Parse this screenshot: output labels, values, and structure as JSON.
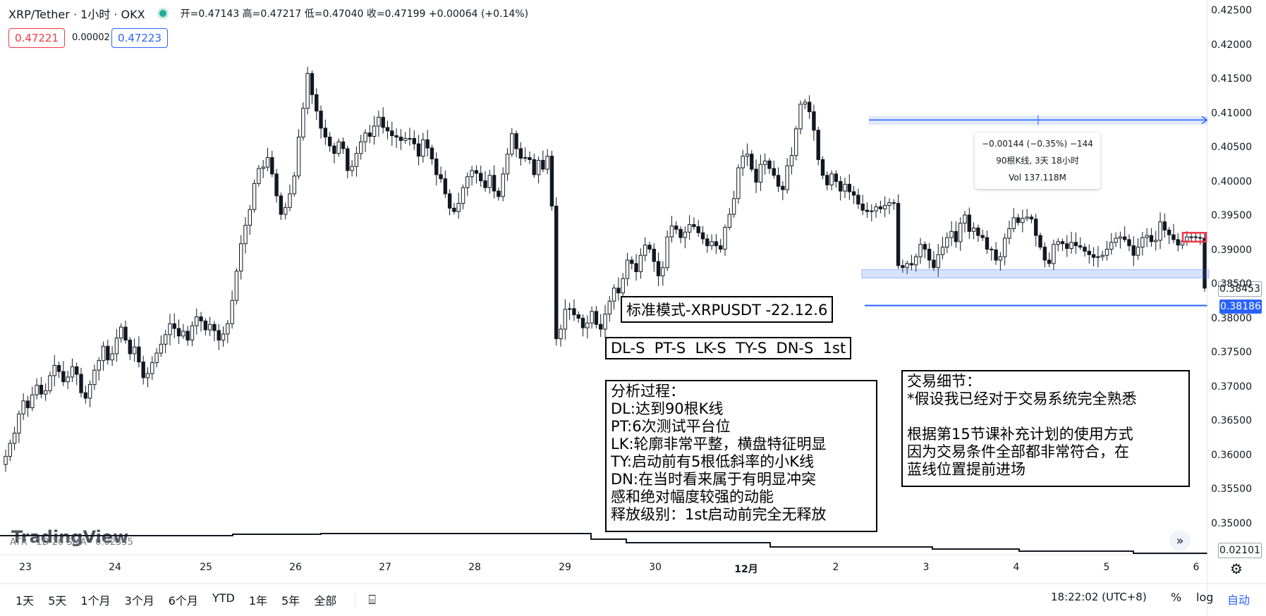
{
  "header": {
    "symbol": "XRP/Tether · 1小时 · OKX",
    "ohlc": "开=0.47143 高=0.47217 低=0.47040 收=0.47199 +0.00064 (+0.14%)",
    "bid": "0.47221",
    "spread": "0.00002",
    "ask": "0.47223"
  },
  "annotations": {
    "title": "标准模式-XRPUSDT -22.12.6",
    "codes": "DL-S  PT-S  LK-S  TY-S  DN-S  1st",
    "analysis": "分析过程：\nDL:达到90根K线\nPT:6次测试平台位\nLK:轮廓非常平整，横盘特征明显\nTY:启动前有5根低斜率的小K线\nDN:在当时看来属于有明显冲突\n感和绝对幅度较强的动能\n释放级别：1st启动前完全无释放",
    "trade": "交易细节：\n*假设我已经对于交易系统完全熟悉\n\n根据第15节课补充计划的使用方式\n因为交易条件全部都非常符合，在\n蓝线位置提前进场"
  },
  "measure": {
    "line1": "−0.00144 (−0.35%) −144",
    "line2": "90根K线, 3天 18小时",
    "line3": "Vol 137.118M"
  },
  "price_tags": {
    "grey": "0.38453",
    "blue": "0.38186",
    "atr": "0.02101"
  },
  "atr_label": "ATR · 1D 20 SMA · 0.02355",
  "watermark": "TradingView",
  "bottom": {
    "ranges": [
      "1天",
      "5天",
      "1个月",
      "3个月",
      "6个月",
      "YTD",
      "1年",
      "5年",
      "全部"
    ],
    "clock": "18:22:02 (UTC+8)",
    "pct": "%",
    "log": "log",
    "auto": "自动"
  },
  "chart_data": {
    "type": "candlestick",
    "title": "XRP/Tether · 1小时 · OKX",
    "ylim": [
      0.345,
      0.425
    ],
    "yticks": [
      "0.42500",
      "0.42000",
      "0.41500",
      "0.41000",
      "0.40500",
      "0.40000",
      "0.39500",
      "0.39000",
      "0.38500",
      "0.38000",
      "0.37500",
      "0.37000",
      "0.36500",
      "0.36000",
      "0.35500",
      "0.35000"
    ],
    "xticks": [
      "23",
      "24",
      "25",
      "26",
      "27",
      "28",
      "29",
      "30",
      "12月",
      "2",
      "3",
      "4",
      "5",
      "6"
    ],
    "closes": [
      0.3598,
      0.3617,
      0.3632,
      0.366,
      0.3679,
      0.3669,
      0.3688,
      0.3702,
      0.3689,
      0.3694,
      0.3716,
      0.3731,
      0.3722,
      0.3707,
      0.3714,
      0.3729,
      0.3718,
      0.3691,
      0.3683,
      0.3703,
      0.3724,
      0.3738,
      0.3759,
      0.3739,
      0.3748,
      0.3771,
      0.3787,
      0.3768,
      0.3748,
      0.3758,
      0.3736,
      0.3713,
      0.3719,
      0.3735,
      0.3749,
      0.3762,
      0.3776,
      0.3792,
      0.3785,
      0.3774,
      0.3781,
      0.3768,
      0.3789,
      0.3802,
      0.3796,
      0.3783,
      0.3791,
      0.3782,
      0.3768,
      0.3777,
      0.3792,
      0.3826,
      0.3869,
      0.3909,
      0.3936,
      0.3959,
      0.3997,
      0.4019,
      0.4021,
      0.4035,
      0.4011,
      0.3979,
      0.3952,
      0.3962,
      0.3982,
      0.4008,
      0.4065,
      0.4107,
      0.4158,
      0.4127,
      0.4103,
      0.4078,
      0.4065,
      0.4052,
      0.4041,
      0.4058,
      0.4048,
      0.4016,
      0.4022,
      0.4041,
      0.4058,
      0.4071,
      0.4066,
      0.4081,
      0.4094,
      0.4079,
      0.4074,
      0.4067,
      0.4065,
      0.406,
      0.4063,
      0.4063,
      0.4055,
      0.4037,
      0.4061,
      0.4049,
      0.4033,
      0.401,
      0.4004,
      0.3982,
      0.3961,
      0.3956,
      0.3968,
      0.3991,
      0.4007,
      0.4016,
      0.4012,
      0.4001,
      0.3991,
      0.4009,
      0.3986,
      0.3978,
      0.4011,
      0.404,
      0.407,
      0.4048,
      0.4034,
      0.4035,
      0.4032,
      0.401,
      0.4031,
      0.4018,
      0.4037,
      0.3964,
      0.377,
      0.3784,
      0.3813,
      0.3814,
      0.3805,
      0.38,
      0.3786,
      0.3793,
      0.381,
      0.3791,
      0.3784,
      0.3806,
      0.3825,
      0.3844,
      0.3837,
      0.3858,
      0.3885,
      0.388,
      0.3868,
      0.3892,
      0.3907,
      0.3901,
      0.3883,
      0.3862,
      0.3874,
      0.3919,
      0.3935,
      0.393,
      0.3918,
      0.3926,
      0.3937,
      0.3934,
      0.3925,
      0.3916,
      0.3906,
      0.3912,
      0.3906,
      0.3901,
      0.3933,
      0.3952,
      0.3975,
      0.402,
      0.4037,
      0.404,
      0.4018,
      0.3999,
      0.4025,
      0.403,
      0.4019,
      0.4009,
      0.3993,
      0.3988,
      0.4023,
      0.4038,
      0.4077,
      0.4113,
      0.4116,
      0.4102,
      0.4075,
      0.4032,
      0.4009,
      0.3995,
      0.4011,
      0.4,
      0.3986,
      0.3996,
      0.3985,
      0.398,
      0.3967,
      0.3958,
      0.3956,
      0.3957,
      0.3963,
      0.396,
      0.3965,
      0.3969,
      0.3968,
      0.3877,
      0.3874,
      0.388,
      0.3878,
      0.389,
      0.3908,
      0.3901,
      0.3885,
      0.3874,
      0.3893,
      0.3904,
      0.3918,
      0.3927,
      0.3912,
      0.3939,
      0.3951,
      0.3927,
      0.3932,
      0.3921,
      0.3918,
      0.3901,
      0.39,
      0.3885,
      0.389,
      0.3917,
      0.3931,
      0.3947,
      0.394,
      0.3946,
      0.3948,
      0.3945,
      0.3921,
      0.3904,
      0.3885,
      0.388,
      0.3908,
      0.3912,
      0.3909,
      0.3902,
      0.3911,
      0.3906,
      0.3904,
      0.3898,
      0.3893,
      0.3889,
      0.389,
      0.3892,
      0.3901,
      0.3911,
      0.3917,
      0.3919,
      0.3915,
      0.3906,
      0.3892,
      0.3904,
      0.3918,
      0.3921,
      0.3912,
      0.3914,
      0.3941,
      0.3929,
      0.3922,
      0.3915,
      0.3907,
      0.3913,
      0.3919,
      0.3919,
      0.3918,
      0.3917,
      0.3844
    ],
    "measured_move": {
      "change": -0.00144,
      "change_pct": -0.35,
      "bars": 90,
      "duration": "3天 18小时",
      "volume": "137.118M"
    }
  }
}
